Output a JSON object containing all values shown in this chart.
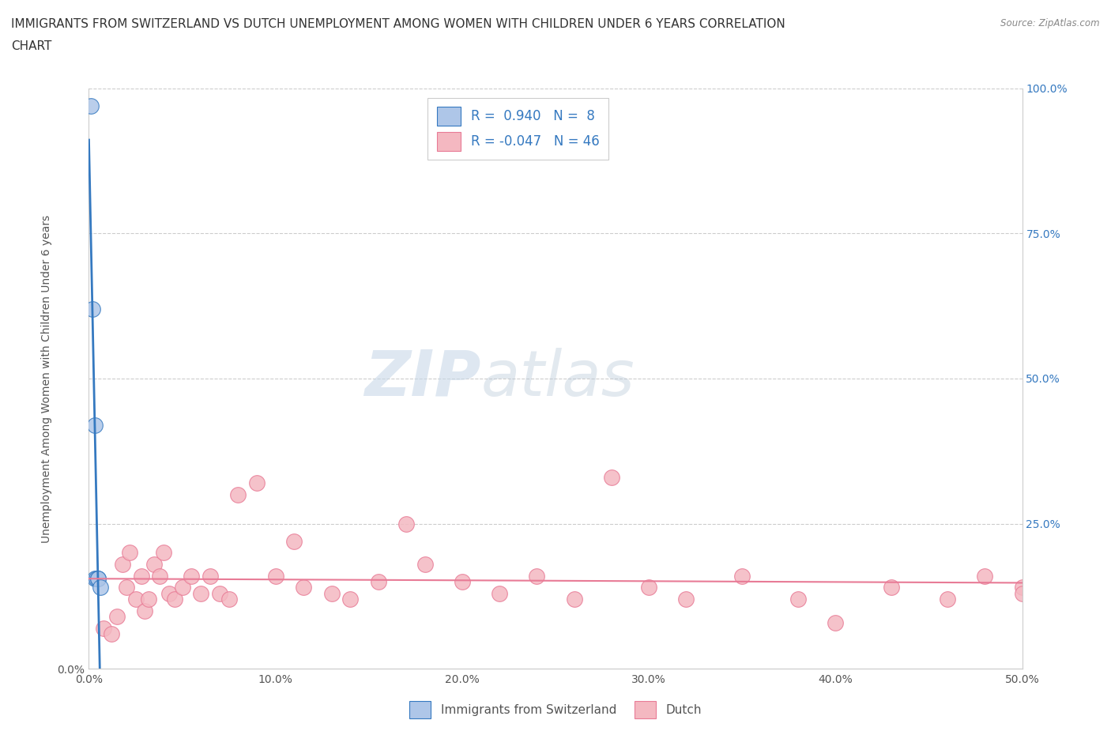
{
  "title_line1": "IMMIGRANTS FROM SWITZERLAND VS DUTCH UNEMPLOYMENT AMONG WOMEN WITH CHILDREN UNDER 6 YEARS CORRELATION",
  "title_line2": "CHART",
  "source": "Source: ZipAtlas.com",
  "ylabel": "Unemployment Among Women with Children Under 6 years",
  "xlabel": "",
  "xlim": [
    0,
    0.5
  ],
  "ylim": [
    0,
    1.0
  ],
  "xticks": [
    0.0,
    0.1,
    0.2,
    0.3,
    0.4,
    0.5
  ],
  "xticklabels": [
    "0.0%",
    "10.0%",
    "20.0%",
    "30.0%",
    "40.0%",
    "50.0%"
  ],
  "yticks_left": [
    0.0,
    0.25,
    0.5,
    0.75,
    1.0
  ],
  "yticklabels_left": [
    "0.0%",
    "",
    "",
    "",
    ""
  ],
  "yticks_right": [
    0.25,
    0.5,
    0.75,
    1.0
  ],
  "yticklabels_right": [
    "25.0%",
    "50.0%",
    "75.0%",
    "100.0%"
  ],
  "swiss_R": 0.94,
  "swiss_N": 8,
  "dutch_R": -0.047,
  "dutch_N": 46,
  "swiss_color": "#aec6e8",
  "dutch_color": "#f4b8c1",
  "swiss_line_color": "#3579c0",
  "dutch_line_color": "#e87b96",
  "background_color": "#ffffff",
  "watermark_zip": "ZIP",
  "watermark_atlas": "atlas",
  "swiss_x": [
    0.001,
    0.002,
    0.003,
    0.003,
    0.004,
    0.005,
    0.005,
    0.006
  ],
  "swiss_y": [
    0.97,
    0.62,
    0.42,
    0.155,
    0.155,
    0.155,
    0.155,
    0.14
  ],
  "dutch_x": [
    0.008,
    0.012,
    0.015,
    0.018,
    0.02,
    0.022,
    0.025,
    0.028,
    0.03,
    0.032,
    0.035,
    0.038,
    0.04,
    0.043,
    0.046,
    0.05,
    0.055,
    0.06,
    0.065,
    0.07,
    0.075,
    0.08,
    0.09,
    0.1,
    0.11,
    0.115,
    0.13,
    0.14,
    0.155,
    0.17,
    0.18,
    0.2,
    0.22,
    0.24,
    0.26,
    0.28,
    0.3,
    0.32,
    0.35,
    0.38,
    0.4,
    0.43,
    0.46,
    0.48,
    0.5,
    0.5
  ],
  "dutch_y": [
    0.07,
    0.06,
    0.09,
    0.18,
    0.14,
    0.2,
    0.12,
    0.16,
    0.1,
    0.12,
    0.18,
    0.16,
    0.2,
    0.13,
    0.12,
    0.14,
    0.16,
    0.13,
    0.16,
    0.13,
    0.12,
    0.3,
    0.32,
    0.16,
    0.22,
    0.14,
    0.13,
    0.12,
    0.15,
    0.25,
    0.18,
    0.15,
    0.13,
    0.16,
    0.12,
    0.33,
    0.14,
    0.12,
    0.16,
    0.12,
    0.08,
    0.14,
    0.12,
    0.16,
    0.14,
    0.13
  ],
  "title_fontsize": 11,
  "axis_label_fontsize": 10,
  "tick_fontsize": 10,
  "legend_fontsize": 12
}
